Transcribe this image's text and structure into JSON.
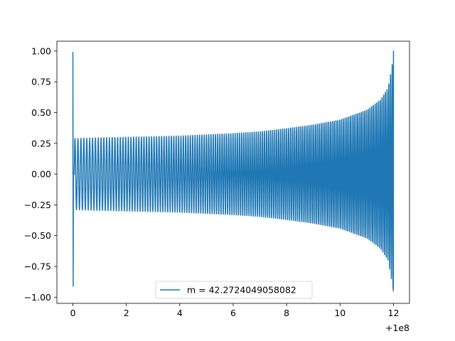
{
  "chart_data": {
    "type": "line",
    "title": "",
    "xlabel": "",
    "ylabel": "",
    "x_offset_label": "+1e8",
    "xlim": [
      -0.6,
      12.6
    ],
    "ylim": [
      -1.05,
      1.08
    ],
    "x_ticks": [
      0,
      2,
      4,
      6,
      8,
      10,
      12
    ],
    "x_tick_labels": [
      "0",
      "2",
      "4",
      "6",
      "8",
      "10",
      "12"
    ],
    "y_ticks": [
      -1.0,
      -0.75,
      -0.5,
      -0.25,
      0.0,
      0.25,
      0.5,
      0.75,
      1.0
    ],
    "y_tick_labels": [
      "−1.00",
      "−0.75",
      "−0.50",
      "−0.25",
      "0.00",
      "0.25",
      "0.50",
      "0.75",
      "1.00"
    ],
    "grid": false,
    "legend_position": "lower center",
    "series": [
      {
        "name": "m = 42.2724049058082",
        "color": "#1f77b4",
        "x_start": 0,
        "x_end": 12,
        "initial_spike": [
          0.99,
          -0.91
        ],
        "final_spike": [
          1.0,
          -0.95
        ],
        "envelope": {
          "x": [
            0.2,
            1,
            2,
            3,
            4,
            5,
            6,
            7,
            8,
            9,
            10,
            10.5,
            11,
            11.5,
            11.8,
            12
          ],
          "amplitude": [
            0.29,
            0.295,
            0.3,
            0.305,
            0.31,
            0.32,
            0.33,
            0.345,
            0.37,
            0.4,
            0.44,
            0.48,
            0.52,
            0.6,
            0.7,
            0.95
          ]
        },
        "cycles": 148
      }
    ]
  }
}
